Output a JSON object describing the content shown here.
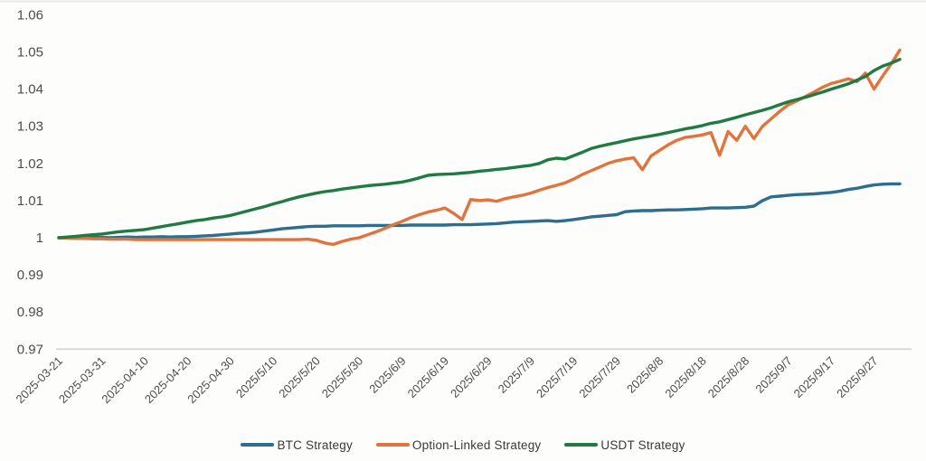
{
  "page": {
    "background": "#fdfdfb"
  },
  "chart_data": {
    "type": "line",
    "title": "",
    "xlabel": "",
    "ylabel": "",
    "ylim": [
      0.97,
      1.06
    ],
    "grid": "off",
    "legend_position": "bottom-center",
    "axis": {
      "tick_label_color": "#4d4d4d",
      "axis_line_color": "#d9d9d9",
      "top_border_color": "#e9e9e6",
      "x_end_day": 196,
      "y_ticks": [
        {
          "label": "1.06",
          "value": 1.06
        },
        {
          "label": "1.05",
          "value": 1.05
        },
        {
          "label": "1.04",
          "value": 1.04
        },
        {
          "label": "1.03",
          "value": 1.03
        },
        {
          "label": "1.02",
          "value": 1.02
        },
        {
          "label": "1.01",
          "value": 1.01
        },
        {
          "label": "1",
          "value": 1.0
        },
        {
          "label": "0.99",
          "value": 0.99
        },
        {
          "label": "0.98",
          "value": 0.98
        },
        {
          "label": "0.97",
          "value": 0.97
        }
      ],
      "x_ticks": [
        {
          "label": "2025-03-21",
          "day": 0
        },
        {
          "label": "2025-03-31",
          "day": 10
        },
        {
          "label": "2025-04-10",
          "day": 20
        },
        {
          "label": "2025-04-20",
          "day": 30
        },
        {
          "label": "2025-04-30",
          "day": 40
        },
        {
          "label": "2025/5/10",
          "day": 50
        },
        {
          "label": "2025/5/20",
          "day": 60
        },
        {
          "label": "2025/5/30",
          "day": 70
        },
        {
          "label": "2025/6/9",
          "day": 80
        },
        {
          "label": "2025/6/19",
          "day": 90
        },
        {
          "label": "2025/6/29",
          "day": 100
        },
        {
          "label": "2025/7/9",
          "day": 110
        },
        {
          "label": "2025/7/19",
          "day": 120
        },
        {
          "label": "2025/7/29",
          "day": 130
        },
        {
          "label": "2025/8/8",
          "day": 140
        },
        {
          "label": "2025/8/18",
          "day": 150
        },
        {
          "label": "2025/8/28",
          "day": 160
        },
        {
          "label": "2025/9/7",
          "day": 170
        },
        {
          "label": "2025/9/17",
          "day": 180
        },
        {
          "label": "2025/9/27",
          "day": 190
        }
      ]
    },
    "series": [
      {
        "name": "BTC Strategy",
        "color": "#2d6d8d",
        "x_start_day": 0,
        "x_step_days": 2,
        "values": [
          1.0,
          1.0,
          1.0001,
          1.0,
          1.0001,
          1.0001,
          1.0,
          1.0001,
          1.0002,
          1.0001,
          1.0002,
          1.0002,
          1.0003,
          1.0002,
          1.0003,
          1.0003,
          1.0004,
          1.0005,
          1.0006,
          1.0008,
          1.001,
          1.0012,
          1.0013,
          1.0015,
          1.0018,
          1.0021,
          1.0024,
          1.0026,
          1.0028,
          1.003,
          1.0031,
          1.0031,
          1.0032,
          1.0032,
          1.0032,
          1.0032,
          1.0033,
          1.0033,
          1.0033,
          1.0033,
          1.0033,
          1.0034,
          1.0034,
          1.0034,
          1.0034,
          1.0034,
          1.0035,
          1.0035,
          1.0035,
          1.0036,
          1.0037,
          1.0038,
          1.004,
          1.0042,
          1.0043,
          1.0044,
          1.0045,
          1.0046,
          1.0044,
          1.0046,
          1.0049,
          1.0052,
          1.0056,
          1.0058,
          1.006,
          1.0062,
          1.007,
          1.0072,
          1.0073,
          1.0073,
          1.0074,
          1.0075,
          1.0075,
          1.0076,
          1.0077,
          1.0078,
          1.008,
          1.008,
          1.008,
          1.0081,
          1.0082,
          1.0085,
          1.01,
          1.011,
          1.0112,
          1.0114,
          1.0116,
          1.0117,
          1.0118,
          1.012,
          1.0122,
          1.0125,
          1.013,
          1.0133,
          1.0138,
          1.0142,
          1.0144,
          1.0145,
          1.0145
        ]
      },
      {
        "name": "Option-Linked Strategy",
        "color": "#e1733c",
        "x_start_day": 0,
        "x_step_days": 2,
        "values": [
          1.0,
          0.9999,
          0.9998,
          0.9998,
          0.9997,
          0.9997,
          0.9996,
          0.9996,
          0.9996,
          0.9995,
          0.9995,
          0.9995,
          0.9995,
          0.9995,
          0.9995,
          0.9995,
          0.9995,
          0.9995,
          0.9995,
          0.9995,
          0.9995,
          0.9995,
          0.9995,
          0.9995,
          0.9995,
          0.9995,
          0.9995,
          0.9995,
          0.9995,
          0.9996,
          0.9993,
          0.9986,
          0.9982,
          0.999,
          0.9996,
          1.0,
          1.0008,
          1.0016,
          1.0025,
          1.0035,
          1.0044,
          1.0054,
          1.0062,
          1.0069,
          1.0074,
          1.008,
          1.0066,
          1.0049,
          1.0103,
          1.01,
          1.0102,
          1.0098,
          1.0105,
          1.011,
          1.0114,
          1.012,
          1.0128,
          1.0135,
          1.0141,
          1.0148,
          1.0158,
          1.017,
          1.018,
          1.019,
          1.02,
          1.0207,
          1.0212,
          1.0215,
          1.0183,
          1.022,
          1.0235,
          1.025,
          1.0262,
          1.027,
          1.0273,
          1.0277,
          1.0283,
          1.0222,
          1.0286,
          1.0262,
          1.03,
          1.0267,
          1.03,
          1.032,
          1.034,
          1.0358,
          1.0368,
          1.038,
          1.0392,
          1.0405,
          1.0415,
          1.0421,
          1.0428,
          1.042,
          1.0443,
          1.04,
          1.0435,
          1.0468,
          1.0505
        ]
      },
      {
        "name": "USDT Strategy",
        "color": "#1f7a44",
        "x_start_day": 0,
        "x_step_days": 2,
        "values": [
          1.0,
          1.0002,
          1.0004,
          1.0006,
          1.0008,
          1.001,
          1.0013,
          1.0016,
          1.0018,
          1.002,
          1.0022,
          1.0026,
          1.003,
          1.0034,
          1.0038,
          1.0042,
          1.0046,
          1.0049,
          1.0053,
          1.0056,
          1.006,
          1.0066,
          1.0072,
          1.0078,
          1.0084,
          1.0091,
          1.0097,
          1.0104,
          1.011,
          1.0115,
          1.012,
          1.0124,
          1.0127,
          1.0131,
          1.0134,
          1.0137,
          1.014,
          1.0142,
          1.0144,
          1.0147,
          1.015,
          1.0155,
          1.0161,
          1.0168,
          1.017,
          1.0171,
          1.0172,
          1.0174,
          1.0176,
          1.0179,
          1.0181,
          1.0184,
          1.0186,
          1.0189,
          1.0192,
          1.0195,
          1.02,
          1.021,
          1.0214,
          1.0212,
          1.0221,
          1.023,
          1.024,
          1.0246,
          1.0251,
          1.0256,
          1.0261,
          1.0266,
          1.027,
          1.0274,
          1.0278,
          1.0283,
          1.0288,
          1.0293,
          1.0297,
          1.0302,
          1.0308,
          1.0312,
          1.0318,
          1.0324,
          1.0331,
          1.0337,
          1.0343,
          1.035,
          1.0358,
          1.0366,
          1.0372,
          1.0378,
          1.0385,
          1.0392,
          1.04,
          1.0407,
          1.0414,
          1.0424,
          1.0434,
          1.045,
          1.0462,
          1.047,
          1.048
        ]
      }
    ]
  }
}
